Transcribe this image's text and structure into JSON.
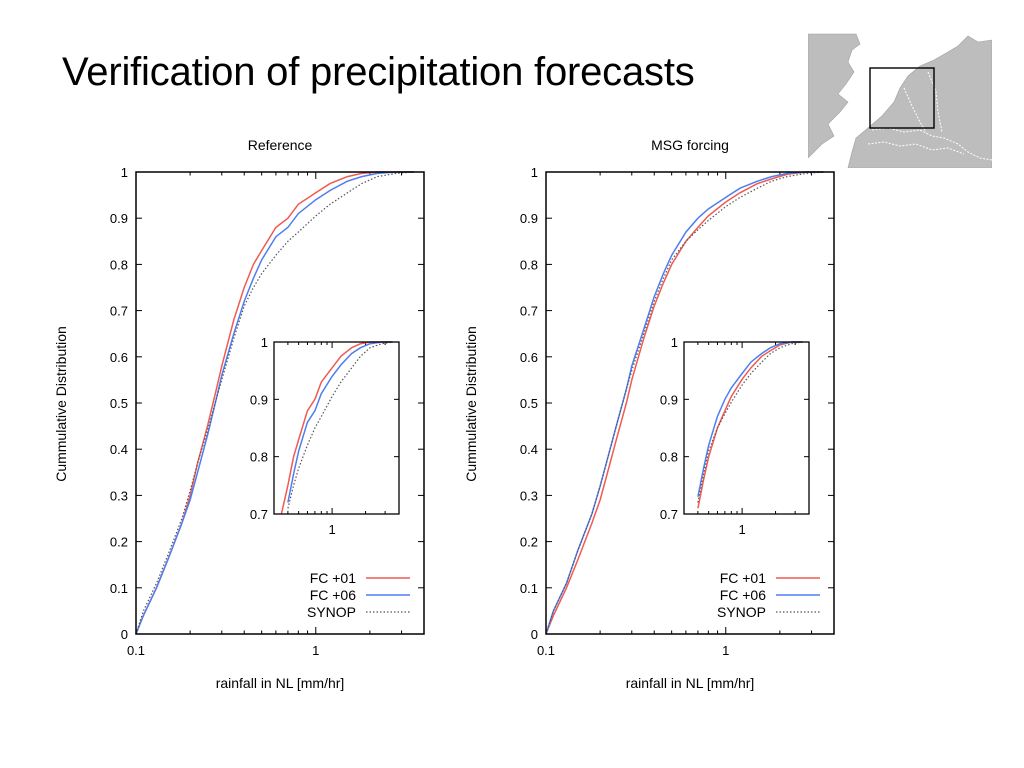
{
  "slide": {
    "title": "Verification of precipitation forecasts",
    "map_icon": "map-netherlands-domain"
  },
  "colors": {
    "fc01": "#f05a50",
    "fc06": "#4d7ef0",
    "synop": "#555555"
  },
  "chart_data": [
    {
      "type": "line",
      "title": "Reference",
      "xlabel": "rainfall in NL [mm/hr]",
      "ylabel": "Cummulative Distribution",
      "xscale": "log",
      "xlim": [
        0.1,
        4
      ],
      "ylim": [
        0,
        1
      ],
      "xticks": [
        {
          "v": 0.1,
          "label": "0.1"
        },
        {
          "v": 1,
          "label": "1"
        }
      ],
      "yticks": [
        "0",
        "0.1",
        "0.2",
        "0.3",
        "0.4",
        "0.5",
        "0.6",
        "0.7",
        "0.8",
        "0.9",
        "1"
      ],
      "legend_position": "bottom-right",
      "series": [
        {
          "name": "FC +01",
          "color": "#f05a50",
          "style": "solid",
          "x": [
            0.1,
            0.11,
            0.13,
            0.15,
            0.18,
            0.2,
            0.22,
            0.25,
            0.28,
            0.3,
            0.35,
            0.4,
            0.45,
            0.5,
            0.6,
            0.7,
            0.8,
            1.0,
            1.2,
            1.5,
            1.8,
            2.2,
            2.8,
            3.5
          ],
          "y": [
            0.0,
            0.04,
            0.1,
            0.16,
            0.24,
            0.3,
            0.37,
            0.45,
            0.53,
            0.58,
            0.68,
            0.75,
            0.8,
            0.83,
            0.88,
            0.9,
            0.93,
            0.955,
            0.975,
            0.99,
            0.997,
            1.0,
            1.0,
            1.0
          ]
        },
        {
          "name": "FC +06",
          "color": "#4d7ef0",
          "style": "solid",
          "x": [
            0.1,
            0.11,
            0.13,
            0.15,
            0.18,
            0.2,
            0.22,
            0.25,
            0.28,
            0.3,
            0.35,
            0.4,
            0.45,
            0.5,
            0.6,
            0.7,
            0.8,
            1.0,
            1.2,
            1.5,
            1.8,
            2.2,
            2.8,
            3.5
          ],
          "y": [
            0.0,
            0.04,
            0.1,
            0.16,
            0.24,
            0.29,
            0.35,
            0.43,
            0.51,
            0.56,
            0.65,
            0.72,
            0.77,
            0.81,
            0.86,
            0.88,
            0.91,
            0.94,
            0.96,
            0.98,
            0.99,
            0.997,
            1.0,
            1.0
          ]
        },
        {
          "name": "SYNOP",
          "color": "#555555",
          "style": "dotted",
          "x": [
            0.1,
            0.11,
            0.13,
            0.15,
            0.18,
            0.2,
            0.22,
            0.25,
            0.28,
            0.3,
            0.35,
            0.4,
            0.45,
            0.5,
            0.6,
            0.7,
            0.8,
            1.0,
            1.2,
            1.5,
            1.8,
            2.2,
            2.8,
            3.5
          ],
          "y": [
            0.0,
            0.05,
            0.11,
            0.17,
            0.25,
            0.31,
            0.37,
            0.44,
            0.51,
            0.55,
            0.64,
            0.71,
            0.75,
            0.78,
            0.82,
            0.85,
            0.87,
            0.905,
            0.93,
            0.955,
            0.975,
            0.99,
            0.997,
            1.0
          ]
        }
      ],
      "inset": {
        "xscale": "log",
        "xlim": [
          0.3,
          4
        ],
        "ylim": [
          0.7,
          1
        ],
        "xticks": [
          {
            "v": 1,
            "label": "1"
          }
        ],
        "yticks": [
          "0.7",
          "0.8",
          "0.9",
          "1"
        ]
      }
    },
    {
      "type": "line",
      "title": "MSG forcing",
      "xlabel": "rainfall in NL [mm/hr]",
      "ylabel": "Cummulative Distribution",
      "xscale": "log",
      "xlim": [
        0.1,
        4
      ],
      "ylim": [
        0,
        1
      ],
      "xticks": [
        {
          "v": 0.1,
          "label": "0.1"
        },
        {
          "v": 1,
          "label": "1"
        }
      ],
      "yticks": [
        "0",
        "0.1",
        "0.2",
        "0.3",
        "0.4",
        "0.5",
        "0.6",
        "0.7",
        "0.8",
        "0.9",
        "1"
      ],
      "legend_position": "bottom-right",
      "series": [
        {
          "name": "FC +01",
          "color": "#f05a50",
          "style": "solid",
          "x": [
            0.1,
            0.11,
            0.13,
            0.15,
            0.18,
            0.2,
            0.22,
            0.25,
            0.28,
            0.3,
            0.35,
            0.4,
            0.45,
            0.5,
            0.6,
            0.7,
            0.8,
            1.0,
            1.2,
            1.5,
            1.8,
            2.2,
            2.8,
            3.5
          ],
          "y": [
            0.0,
            0.04,
            0.1,
            0.16,
            0.24,
            0.29,
            0.35,
            0.43,
            0.5,
            0.55,
            0.64,
            0.71,
            0.76,
            0.8,
            0.85,
            0.88,
            0.905,
            0.935,
            0.955,
            0.975,
            0.985,
            0.995,
            1.0,
            1.0
          ]
        },
        {
          "name": "FC +06",
          "color": "#4d7ef0",
          "style": "solid",
          "x": [
            0.1,
            0.11,
            0.13,
            0.15,
            0.18,
            0.2,
            0.22,
            0.25,
            0.28,
            0.3,
            0.35,
            0.4,
            0.45,
            0.5,
            0.6,
            0.7,
            0.8,
            1.0,
            1.2,
            1.5,
            1.8,
            2.2,
            2.8,
            3.5
          ],
          "y": [
            0.0,
            0.05,
            0.11,
            0.18,
            0.26,
            0.32,
            0.38,
            0.46,
            0.53,
            0.58,
            0.66,
            0.73,
            0.78,
            0.82,
            0.87,
            0.9,
            0.92,
            0.945,
            0.965,
            0.98,
            0.99,
            0.997,
            1.0,
            1.0
          ]
        },
        {
          "name": "SYNOP",
          "color": "#555555",
          "style": "dotted",
          "x": [
            0.1,
            0.11,
            0.13,
            0.15,
            0.18,
            0.2,
            0.22,
            0.25,
            0.28,
            0.3,
            0.35,
            0.4,
            0.45,
            0.5,
            0.6,
            0.7,
            0.8,
            1.0,
            1.2,
            1.5,
            1.8,
            2.2,
            2.8,
            3.5
          ],
          "y": [
            0.0,
            0.05,
            0.11,
            0.18,
            0.26,
            0.32,
            0.38,
            0.46,
            0.53,
            0.57,
            0.65,
            0.72,
            0.77,
            0.81,
            0.85,
            0.875,
            0.895,
            0.925,
            0.945,
            0.965,
            0.98,
            0.99,
            0.997,
            1.0
          ]
        }
      ],
      "inset": {
        "xscale": "log",
        "xlim": [
          0.3,
          4
        ],
        "ylim": [
          0.7,
          1
        ],
        "xticks": [
          {
            "v": 1,
            "label": "1"
          }
        ],
        "yticks": [
          "0.7",
          "0.8",
          "0.9",
          "1"
        ]
      }
    }
  ]
}
